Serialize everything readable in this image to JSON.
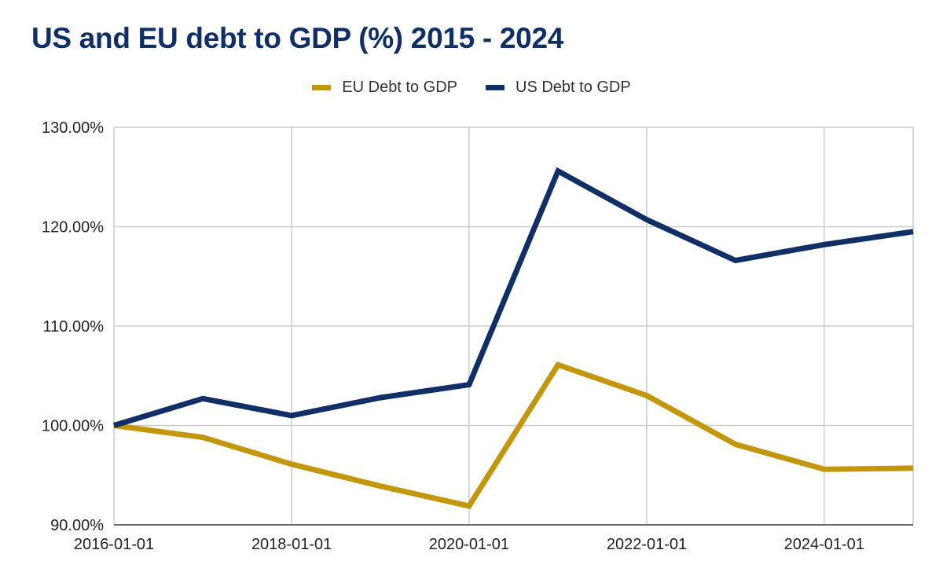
{
  "chart_data": {
    "type": "line",
    "title": "US and EU debt to GDP (%) 2015 - 2024",
    "xlabel": "",
    "ylabel": "",
    "x": [
      "2016-01-01",
      "2017-01-01",
      "2018-01-01",
      "2019-01-01",
      "2020-01-01",
      "2021-01-01",
      "2022-01-01",
      "2023-01-01",
      "2024-01-01",
      "2025-01-01"
    ],
    "x_ticks": [
      "2016-01-01",
      "2018-01-01",
      "2020-01-01",
      "2022-01-01",
      "2024-01-01"
    ],
    "y_ticks": [
      90,
      100,
      110,
      120,
      130
    ],
    "y_tick_labels": [
      "90.00%",
      "100.00%",
      "110.00%",
      "120.00%",
      "130.00%"
    ],
    "ylim": [
      90,
      130
    ],
    "xlim": [
      "2016-01-01",
      "2025-01-01"
    ],
    "grid": true,
    "legend_position": "top-center",
    "series": [
      {
        "name": "EU Debt to GDP",
        "color": "#c4960c",
        "values": [
          100.0,
          98.8,
          96.1,
          93.9,
          91.9,
          106.1,
          103.0,
          98.1,
          95.6,
          95.7
        ]
      },
      {
        "name": "US Debt to GDP",
        "color": "#0f2f66",
        "values": [
          100.0,
          102.7,
          101.0,
          102.8,
          104.1,
          125.6,
          120.7,
          116.6,
          118.2,
          119.5
        ]
      }
    ]
  }
}
